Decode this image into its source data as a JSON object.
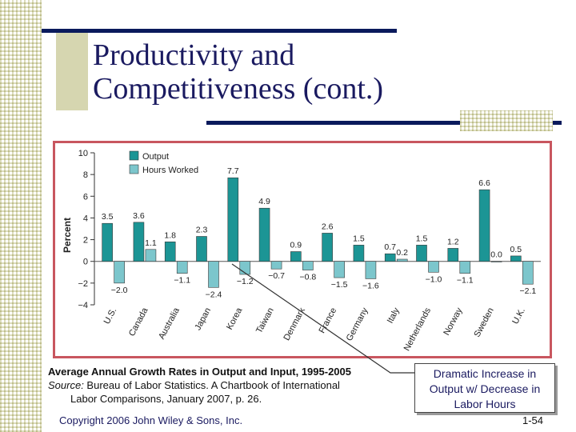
{
  "slide": {
    "title_line1": "Productivity and",
    "title_line2": "Competitiveness (cont.)",
    "caption_title": "Average Annual Growth Rates in Output and Input, 1995-2005",
    "caption_source_label": "Source:",
    "caption_source_text": " Bureau of Labor Statistics.  A Chartbook of International",
    "caption_source_text2": "Labor Comparisons, January 2007, p. 26.",
    "callout_line1": "Dramatic Increase in",
    "callout_line2": "Output w/ Decrease in",
    "callout_line3": "Labor Hours",
    "copyright": "Copyright 2006 John Wiley & Sons, Inc.",
    "page_number": "1-54"
  },
  "colors": {
    "output": "#1c9595",
    "hours": "#7cc6cc",
    "frame": "#c8565f",
    "rule": "#0a1a5c"
  },
  "chart_data": {
    "type": "bar",
    "categories": [
      "U.S.",
      "Canada",
      "Australia",
      "Japan",
      "Korea",
      "Taiwan",
      "Denmark",
      "France",
      "Germany",
      "Italy",
      "Netherlands",
      "Norway",
      "Sweden",
      "U.K."
    ],
    "series": [
      {
        "name": "Output",
        "values": [
          3.5,
          3.6,
          1.8,
          2.3,
          7.7,
          4.9,
          0.9,
          2.6,
          1.5,
          0.7,
          1.5,
          1.2,
          6.6,
          0.5
        ]
      },
      {
        "name": "Hours Worked",
        "values": [
          -2.0,
          1.1,
          -1.1,
          -2.4,
          -1.2,
          -0.7,
          -0.8,
          -1.5,
          -1.6,
          0.2,
          -1.0,
          -1.1,
          0.0,
          -2.1
        ]
      }
    ],
    "value_labels_output": [
      "3.5",
      "3.6",
      "1.8",
      "2.3",
      "7.7",
      "4.9",
      "0.9",
      "2.6",
      "1.5",
      "0.7",
      "1.5",
      "1.2",
      "6.6",
      "0.5"
    ],
    "value_labels_hours": [
      "−2.0",
      "1.1",
      "−1.1",
      "−2.4",
      "−1.2",
      "−0.7",
      "−0.8",
      "−1.5",
      "−1.6",
      "0.2",
      "−1.0",
      "−1.1",
      "0.0",
      "−2.1"
    ],
    "ylabel": "Percent",
    "ylim": [
      -4,
      10
    ],
    "yticks": [
      -4,
      -2,
      0,
      2,
      4,
      6,
      8,
      10
    ],
    "ytick_labels": [
      "−4",
      "−2",
      "0",
      "2",
      "4",
      "6",
      "8",
      "10"
    ],
    "legend_position": "top-left",
    "grid": false
  }
}
